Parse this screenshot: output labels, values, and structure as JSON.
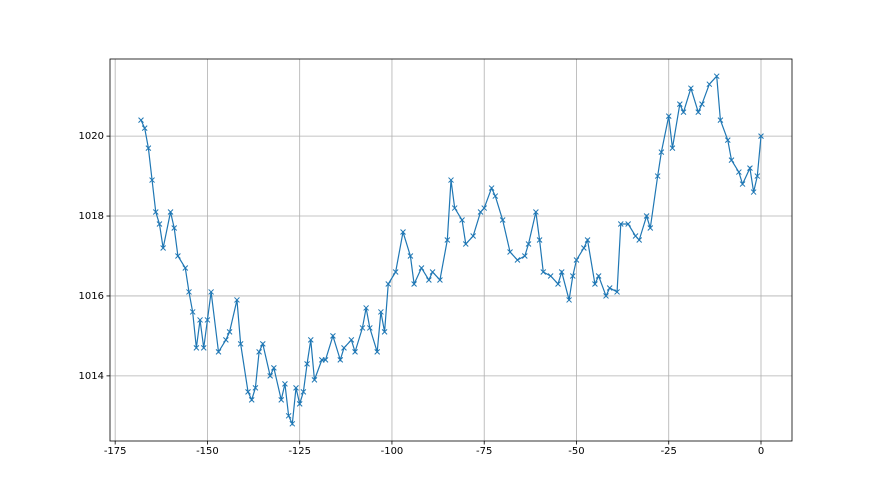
{
  "chart_data": {
    "type": "line",
    "color": "#1f77b4",
    "marker": "x",
    "grid": true,
    "xlim": [
      -176.4,
      8.4
    ],
    "xticks": [
      -175,
      -150,
      -125,
      -100,
      -75,
      -50,
      -25,
      0
    ],
    "ylim": [
      1012.37,
      1021.93
    ],
    "yticks": [
      1014,
      1016,
      1018,
      1020
    ],
    "x": [
      -168,
      -167,
      -166,
      -165,
      -164,
      -163,
      -162,
      -160,
      -159,
      -158,
      -156,
      -155,
      -154,
      -153,
      -152,
      -151,
      -150,
      -149,
      -147,
      -145,
      -144,
      -142,
      -141,
      -139,
      -138,
      -137,
      -136,
      -135,
      -133,
      -132,
      -130,
      -129,
      -128,
      -127,
      -126,
      -125,
      -124,
      -123,
      -122,
      -121,
      -119,
      -118,
      -116,
      -114,
      -113,
      -111,
      -110,
      -108,
      -107,
      -106,
      -104,
      -103,
      -102,
      -101,
      -99,
      -97,
      -95,
      -94,
      -92,
      -90,
      -89,
      -87,
      -85,
      -84,
      -83,
      -81,
      -80,
      -78,
      -76,
      -75,
      -73,
      -72,
      -70,
      -68,
      -66,
      -64,
      -63,
      -61,
      -60,
      -59,
      -57,
      -55,
      -54,
      -52,
      -51,
      -50,
      -48,
      -47,
      -45,
      -44,
      -42,
      -41,
      -39,
      -38,
      -36,
      -34,
      -33,
      -31,
      -30,
      -28,
      -27,
      -25,
      -24,
      -22,
      -21,
      -19,
      -17,
      -16,
      -14,
      -12,
      -11,
      -9,
      -8,
      -6,
      -5,
      -3,
      -2,
      -1,
      0
    ],
    "values": [
      1020.4,
      1020.2,
      1019.7,
      1018.9,
      1018.1,
      1017.8,
      1017.2,
      1018.1,
      1017.7,
      1017.0,
      1016.7,
      1016.1,
      1015.6,
      1014.7,
      1015.4,
      1014.7,
      1015.4,
      1016.1,
      1014.6,
      1014.9,
      1015.1,
      1015.9,
      1014.8,
      1013.6,
      1013.4,
      1013.7,
      1014.6,
      1014.8,
      1014.0,
      1014.2,
      1013.4,
      1013.8,
      1013.0,
      1012.8,
      1013.7,
      1013.3,
      1013.6,
      1014.3,
      1014.9,
      1013.9,
      1014.4,
      1014.4,
      1015.0,
      1014.4,
      1014.7,
      1014.9,
      1014.6,
      1015.2,
      1015.7,
      1015.2,
      1014.6,
      1015.6,
      1015.1,
      1016.3,
      1016.6,
      1017.6,
      1017.0,
      1016.3,
      1016.7,
      1016.4,
      1016.6,
      1016.4,
      1017.4,
      1018.9,
      1018.2,
      1017.9,
      1017.3,
      1017.5,
      1018.1,
      1018.2,
      1018.7,
      1018.5,
      1017.9,
      1017.1,
      1016.9,
      1017.0,
      1017.3,
      1018.1,
      1017.4,
      1016.6,
      1016.5,
      1016.3,
      1016.6,
      1015.9,
      1016.5,
      1016.9,
      1017.2,
      1017.4,
      1016.3,
      1016.5,
      1016.0,
      1016.2,
      1016.1,
      1017.8,
      1017.8,
      1017.5,
      1017.4,
      1018.0,
      1017.7,
      1019.0,
      1019.6,
      1020.5,
      1019.7,
      1020.8,
      1020.6,
      1021.2,
      1020.6,
      1020.8,
      1021.3,
      1021.5,
      1020.4,
      1019.9,
      1019.4,
      1019.1,
      1018.8,
      1019.2,
      1018.6,
      1019.0,
      1020.0
    ]
  }
}
